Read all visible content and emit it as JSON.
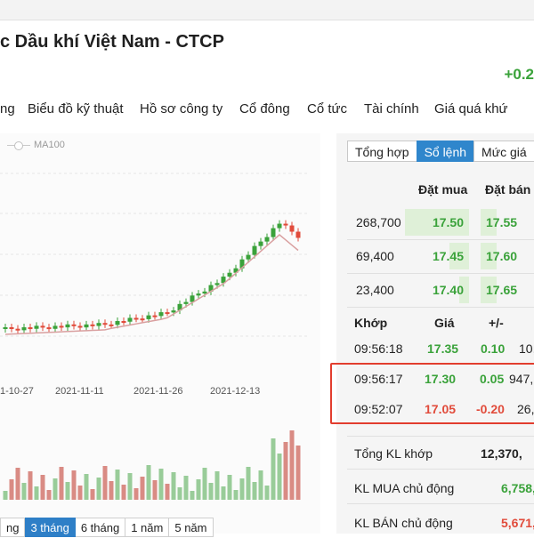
{
  "header": {
    "title": "c Dầu khí Việt Nam - CTCP",
    "change": "+0.2"
  },
  "nav": {
    "items": [
      "ng",
      "Biểu đồ kỹ thuật",
      "Hồ sơ công ty",
      "Cổ đông",
      "Cổ tức",
      "Tài chính",
      "Giá quá khứ"
    ]
  },
  "chart": {
    "legend_label": "MA100",
    "x_tick_labels": [
      "1-10-27",
      "2021-11-11",
      "2021-11-26",
      "2021-12-13"
    ],
    "ranges": [
      "ng",
      "3 tháng",
      "6 tháng",
      "1 năm",
      "5 năm"
    ],
    "active_range": "3 tháng",
    "colors": {
      "up": "#3aa23a",
      "down": "#e14b3b",
      "ma": "#d9a0a0",
      "volume_up": "#99cc99",
      "volume_down": "#d98b84"
    }
  },
  "chart_data": {
    "type": "candlestick",
    "x": [
      "1-10-27",
      "2021-11-11",
      "2021-11-26",
      "2021-12-13"
    ],
    "series": [
      {
        "name": "MA100",
        "type": "line"
      }
    ]
  },
  "orderbook": {
    "tabs": [
      "Tổng hợp",
      "Sổ lệnh",
      "Mức giá"
    ],
    "active_tab": "Sổ lệnh",
    "bid_header": "Đặt mua",
    "ask_header": "Đặt bán",
    "rows": [
      {
        "volume": "268,700",
        "bid": "17.50",
        "ask": "17.55",
        "bid_fill": 0.9,
        "ask_fill": 0.3
      },
      {
        "volume": "69,400",
        "bid": "17.45",
        "ask": "17.60",
        "bid_fill": 0.28,
        "ask_fill": 0.3
      },
      {
        "volume": "23,400",
        "bid": "17.40",
        "ask": "17.65",
        "bid_fill": 0.14,
        "ask_fill": 0.3
      }
    ]
  },
  "matched": {
    "headers": [
      "Khớp",
      "Giá",
      "+/-"
    ],
    "rows": [
      {
        "time": "09:56:18",
        "price": "17.35",
        "change": "0.10",
        "volume": "10,",
        "dir": "up"
      },
      {
        "time": "09:56:17",
        "price": "17.30",
        "change": "0.05",
        "volume": "947,",
        "dir": "up"
      },
      {
        "time": "09:52:07",
        "price": "17.05",
        "change": "-0.20",
        "volume": "26,",
        "dir": "down"
      }
    ]
  },
  "stats": [
    {
      "label": "Tổng KL khớp",
      "value": "12,370,",
      "dir": "neutral"
    },
    {
      "label": "KL MUA chủ động",
      "value": "6,758,",
      "dir": "up"
    },
    {
      "label": "KL BÁN chủ động",
      "value": "5,671,",
      "dir": "down"
    }
  ]
}
